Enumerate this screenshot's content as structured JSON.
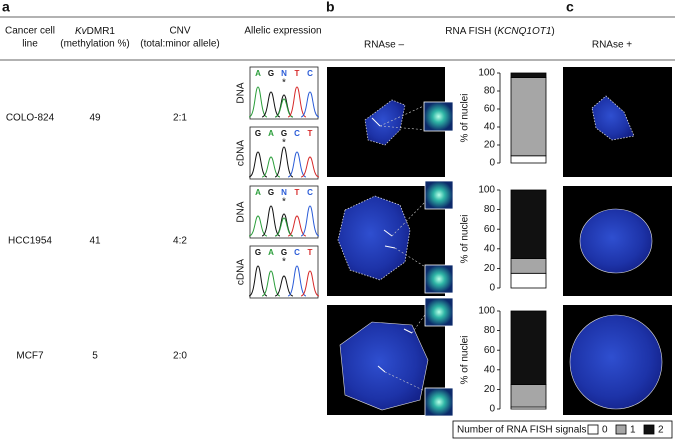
{
  "panels": {
    "a": "a",
    "b": "b",
    "c": "c"
  },
  "table": {
    "headers": [
      [
        "Cancer cell",
        "line"
      ],
      {
        "italic": "Kv",
        "rest": "DMR1",
        "line2": "(methylation %)"
      },
      [
        "CNV",
        "(total:minor allele)"
      ],
      "Allelic expression"
    ],
    "rows": [
      [
        "COLO-824",
        "49",
        "2:1"
      ],
      [
        "HCC1954",
        "41",
        "4:2"
      ],
      [
        "MCF7",
        "5",
        "2:0"
      ]
    ]
  },
  "chromatograms": [
    {
      "label": "DNA",
      "bases": [
        "A",
        "G",
        "N",
        "T",
        "C"
      ],
      "marker": "*"
    },
    {
      "label": "cDNA",
      "bases": [
        "G",
        "A",
        "G",
        "C",
        "T"
      ],
      "marker": "*"
    },
    {
      "label": "DNA",
      "bases": [
        "A",
        "G",
        "N",
        "T",
        "C"
      ],
      "marker": "*"
    },
    {
      "label": "cDNA",
      "bases": [
        "G",
        "A",
        "G",
        "C",
        "T"
      ],
      "marker": "*"
    }
  ],
  "fish": {
    "title_pre": "RNA FISH (",
    "title_gene": "KCNQ1OT1",
    "title_post": ")",
    "minus": "RNAse –",
    "plus": "RNAse +"
  },
  "chart_data": [
    {
      "type": "bar",
      "stacked": true,
      "categories": [
        null
      ],
      "y_label": "% of nuclei",
      "ylim": [
        0,
        100
      ],
      "yticks": [
        0,
        20,
        40,
        60,
        80,
        100
      ],
      "series": [
        {
          "color": "#ffffff",
          "values": [
            8
          ]
        },
        {
          "color": "#a6a6a6",
          "values": [
            87
          ]
        },
        {
          "color": "#111111",
          "values": [
            5
          ]
        }
      ]
    },
    {
      "type": "bar",
      "stacked": true,
      "categories": [
        null
      ],
      "y_label": "% of nuclei",
      "ylim": [
        0,
        100
      ],
      "yticks": [
        0,
        20,
        40,
        60,
        80,
        100
      ],
      "series": [
        {
          "color": "#ffffff",
          "values": [
            15
          ]
        },
        {
          "color": "#a6a6a6",
          "values": [
            15
          ]
        },
        {
          "color": "#111111",
          "values": [
            70
          ]
        }
      ]
    },
    {
      "type": "bar",
      "stacked": true,
      "categories": [
        null
      ],
      "y_label": "% of nuclei",
      "ylim": [
        0,
        100
      ],
      "yticks": [
        0,
        20,
        40,
        60,
        80,
        100
      ],
      "legend_title": "Number of RNA FISH signals",
      "series": [
        {
          "name": "0",
          "color": "#ffffff",
          "values": [
            2
          ]
        },
        {
          "name": "1",
          "color": "#a6a6a6",
          "values": [
            23
          ]
        },
        {
          "name": "2",
          "color": "#111111",
          "values": [
            75
          ]
        }
      ]
    }
  ]
}
